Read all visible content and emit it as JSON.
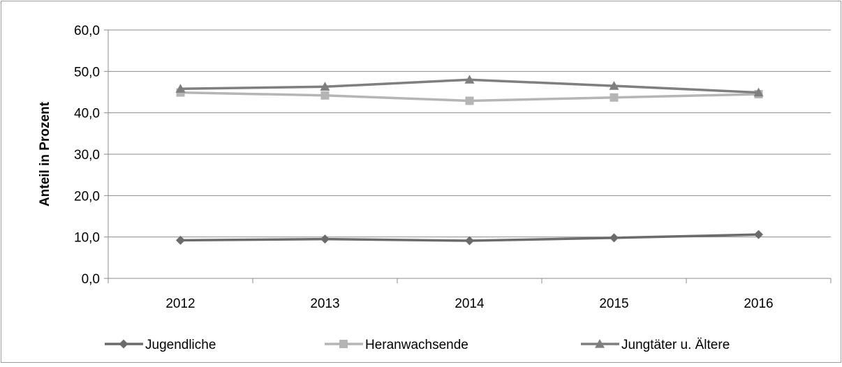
{
  "chart_data": {
    "type": "line",
    "title": "",
    "xlabel": "",
    "ylabel": "Anteil in Prozent",
    "categories": [
      "2012",
      "2013",
      "2014",
      "2015",
      "2016"
    ],
    "ylim": [
      0,
      60
    ],
    "yticks": [
      "0,0",
      "10,0",
      "20,0",
      "30,0",
      "40,0",
      "50,0",
      "60,0"
    ],
    "grid": true,
    "legend_position": "bottom",
    "series": [
      {
        "name": "Jugendliche",
        "marker": "diamond",
        "color": "#6b6b6b",
        "values": [
          9.2,
          9.5,
          9.1,
          9.8,
          10.6
        ]
      },
      {
        "name": "Heranwachsende",
        "marker": "square",
        "color": "#b5b5b5",
        "values": [
          44.9,
          44.2,
          42.9,
          43.7,
          44.5
        ]
      },
      {
        "name": "Jungtäter u. Ältere",
        "marker": "triangle",
        "color": "#7f7f7f",
        "values": [
          45.8,
          46.3,
          48.0,
          46.5,
          44.9
        ]
      }
    ]
  }
}
